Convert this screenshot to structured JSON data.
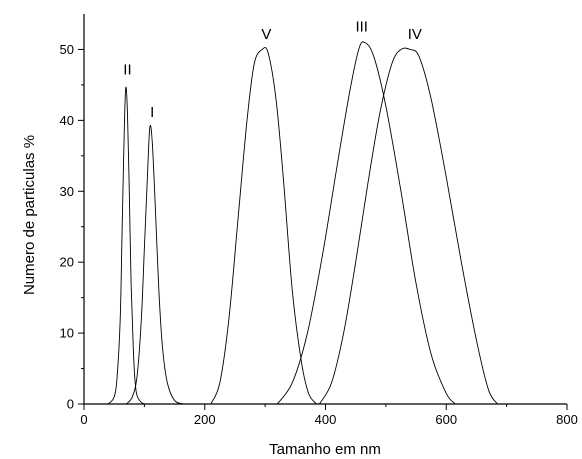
{
  "chart_data": {
    "type": "line",
    "title": "",
    "xlabel": "Tamanho em nm",
    "ylabel": "Numero de particulas %",
    "xlim": [
      0,
      800
    ],
    "ylim": [
      0,
      55
    ],
    "xticks": [
      0,
      200,
      400,
      600,
      800
    ],
    "yticks": [
      0,
      10,
      20,
      30,
      40,
      50
    ],
    "grid": false,
    "series": [
      {
        "name": "II",
        "x": [
          40,
          50,
          55,
          60,
          63,
          66,
          69,
          72,
          75,
          78,
          82,
          86,
          92,
          100
        ],
        "y": [
          0,
          1,
          4,
          12,
          24,
          36,
          44.5,
          41,
          30,
          17,
          7,
          2,
          0.5,
          0
        ]
      },
      {
        "name": "I",
        "x": [
          70,
          80,
          88,
          95,
          100,
          105,
          109,
          113,
          118,
          124,
          130,
          138,
          150,
          165
        ],
        "y": [
          0,
          1,
          4,
          12,
          22,
          32,
          39,
          37,
          28,
          16,
          8,
          3,
          0.5,
          0
        ]
      },
      {
        "name": "V",
        "x": [
          210,
          225,
          240,
          255,
          270,
          282,
          295,
          305,
          318,
          330,
          345,
          360,
          372,
          385
        ],
        "y": [
          0,
          3,
          12,
          26,
          40,
          48,
          50,
          49.5,
          43,
          32,
          16,
          6,
          1.5,
          0
        ]
      },
      {
        "name": "III",
        "x": [
          320,
          345,
          370,
          395,
          420,
          440,
          455,
          465,
          480,
          500,
          525,
          550,
          575,
          600,
          615
        ],
        "y": [
          0,
          3,
          10,
          21,
          34,
          44,
          50,
          51,
          49,
          42,
          30,
          17,
          7,
          1.5,
          0
        ]
      },
      {
        "name": "IV",
        "x": [
          390,
          410,
          430,
          450,
          470,
          490,
          510,
          525,
          540,
          555,
          575,
          600,
          625,
          650,
          670,
          685
        ],
        "y": [
          0,
          3,
          10,
          20,
          31,
          41,
          48,
          50,
          50,
          49,
          43,
          32,
          20,
          9,
          2,
          0
        ]
      }
    ],
    "annotations": [
      {
        "text": "II",
        "x": 72,
        "y": 46.5
      },
      {
        "text": "I",
        "x": 113,
        "y": 40.5
      },
      {
        "text": "V",
        "x": 302,
        "y": 51.5
      },
      {
        "text": "III",
        "x": 460,
        "y": 52.5
      },
      {
        "text": "IV",
        "x": 548,
        "y": 51.5
      }
    ]
  }
}
